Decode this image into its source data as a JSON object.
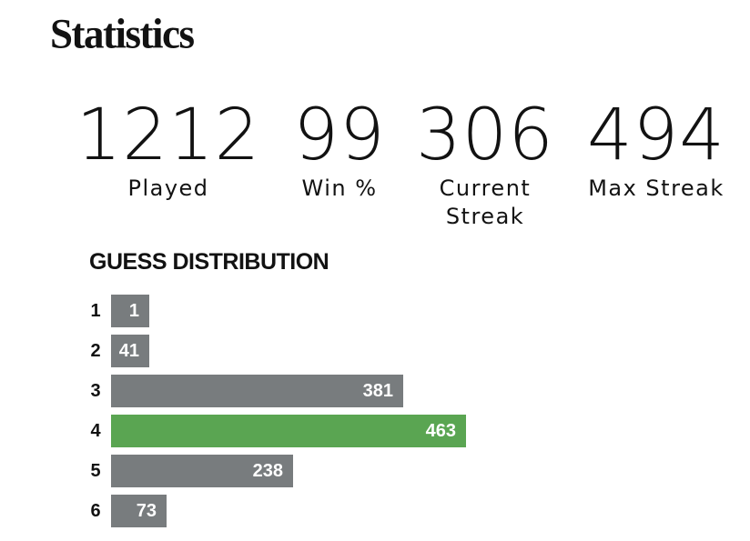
{
  "title": "Statistics",
  "stats": {
    "played": {
      "value": "1212",
      "label": "Played"
    },
    "win_pct": {
      "value": "99",
      "label": "Win %"
    },
    "current_streak": {
      "value": "306",
      "label_line1": "Current",
      "label_line2": "Streak"
    },
    "max_streak": {
      "value": "494",
      "label": "Max Streak"
    }
  },
  "distribution": {
    "heading": "GUESS DISTRIBUTION",
    "bar_color": "#787c7e",
    "highlight_color": "#5aa552",
    "highlight_guess": "4",
    "max_count": 463,
    "rows": [
      {
        "guess": "1",
        "count": "1"
      },
      {
        "guess": "2",
        "count": "41"
      },
      {
        "guess": "3",
        "count": "381"
      },
      {
        "guess": "4",
        "count": "463"
      },
      {
        "guess": "5",
        "count": "238"
      },
      {
        "guess": "6",
        "count": "73"
      }
    ]
  }
}
